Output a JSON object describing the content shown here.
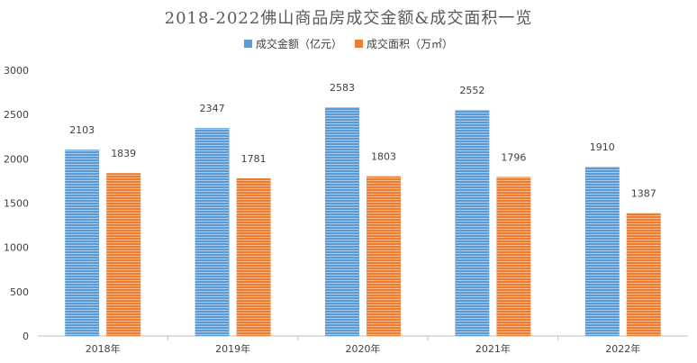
{
  "chart_data": {
    "type": "bar",
    "title": "2018-2022佛山商品房成交金额&成交面积一览",
    "categories": [
      "2018年",
      "2019年",
      "2020年",
      "2021年",
      "2022年"
    ],
    "series": [
      {
        "name": "成交金额（亿元）",
        "values": [
          2103,
          2347,
          2583,
          2552,
          1910
        ],
        "color": "#5b9bd5"
      },
      {
        "name": "成交面积（万㎡）",
        "values": [
          1839,
          1781,
          1803,
          1796,
          1387
        ],
        "color": "#ed7d31"
      }
    ],
    "ylim": [
      0,
      3000
    ],
    "yticks": [
      0,
      500,
      1000,
      1500,
      2000,
      2500,
      3000
    ],
    "legend_position": "top-center",
    "grid": false
  }
}
